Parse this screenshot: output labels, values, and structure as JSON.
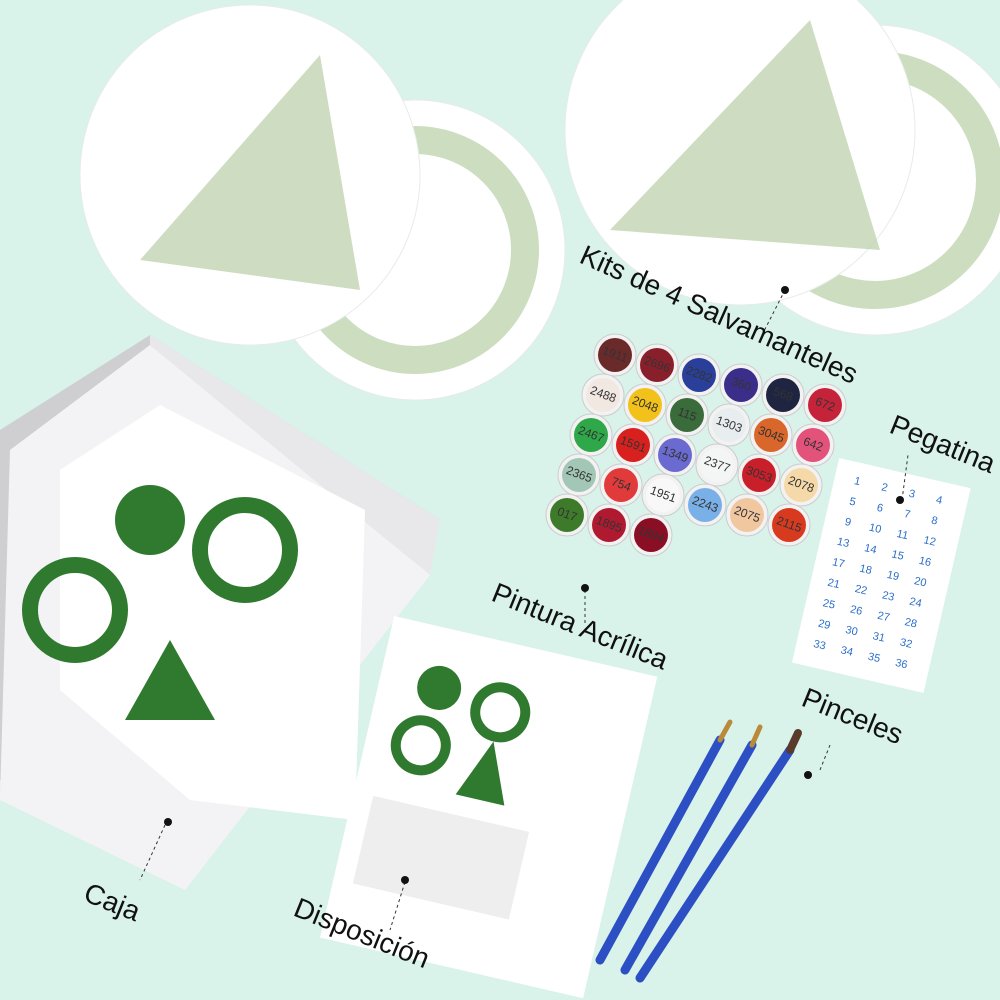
{
  "labels": {
    "coasters": "Kits de 4 Salvamanteles",
    "sticker": "Pegatina",
    "paint": "Pintura Acrílica",
    "brushes": "Pinceles",
    "box": "Caja",
    "layout": "Disposición"
  },
  "pots": [
    {
      "label": "1911",
      "color": "#6b2a2a"
    },
    {
      "label": "2696",
      "color": "#8a1f2c"
    },
    {
      "label": "2282",
      "color": "#2a3f9a"
    },
    {
      "label": "360",
      "color": "#3a2e8a"
    },
    {
      "label": "568",
      "color": "#1f2440"
    },
    {
      "label": "672",
      "color": "#c4233a"
    },
    {
      "label": "2488",
      "color": "#f2e8e2"
    },
    {
      "label": "2048",
      "color": "#f3c21a"
    },
    {
      "label": "115",
      "color": "#3a6b3a"
    },
    {
      "label": "1303",
      "color": "#e8eef0"
    },
    {
      "label": "3045",
      "color": "#d9662a"
    },
    {
      "label": "642",
      "color": "#e2527a"
    },
    {
      "label": "2467",
      "color": "#2fa84a"
    },
    {
      "label": "1591",
      "color": "#d8201e"
    },
    {
      "label": "1349",
      "color": "#6a6ad0"
    },
    {
      "label": "2377",
      "color": "#f4f6f6"
    },
    {
      "label": "3053",
      "color": "#c91f2a"
    },
    {
      "label": "2078",
      "color": "#f5d9a8"
    },
    {
      "label": "2365",
      "color": "#a3c7b6"
    },
    {
      "label": "754",
      "color": "#e03a3a"
    },
    {
      "label": "1951",
      "color": "#f8f8f8"
    },
    {
      "label": "2243",
      "color": "#7ab0e8"
    },
    {
      "label": "2075",
      "color": "#f1c7a0"
    },
    {
      "label": "2115",
      "color": "#d83a20"
    },
    {
      "label": "017",
      "color": "#3d7a2a"
    },
    {
      "label": "1895",
      "color": "#b01a30"
    },
    {
      "label": "1894",
      "color": "#8a0f25"
    }
  ],
  "sticker_numbers": [
    1,
    2,
    3,
    4,
    5,
    6,
    7,
    8,
    9,
    10,
    11,
    12,
    13,
    14,
    15,
    16,
    17,
    18,
    19,
    20,
    21,
    22,
    23,
    24,
    25,
    26,
    27,
    28,
    29,
    30,
    31,
    32,
    33,
    34,
    35,
    36
  ]
}
